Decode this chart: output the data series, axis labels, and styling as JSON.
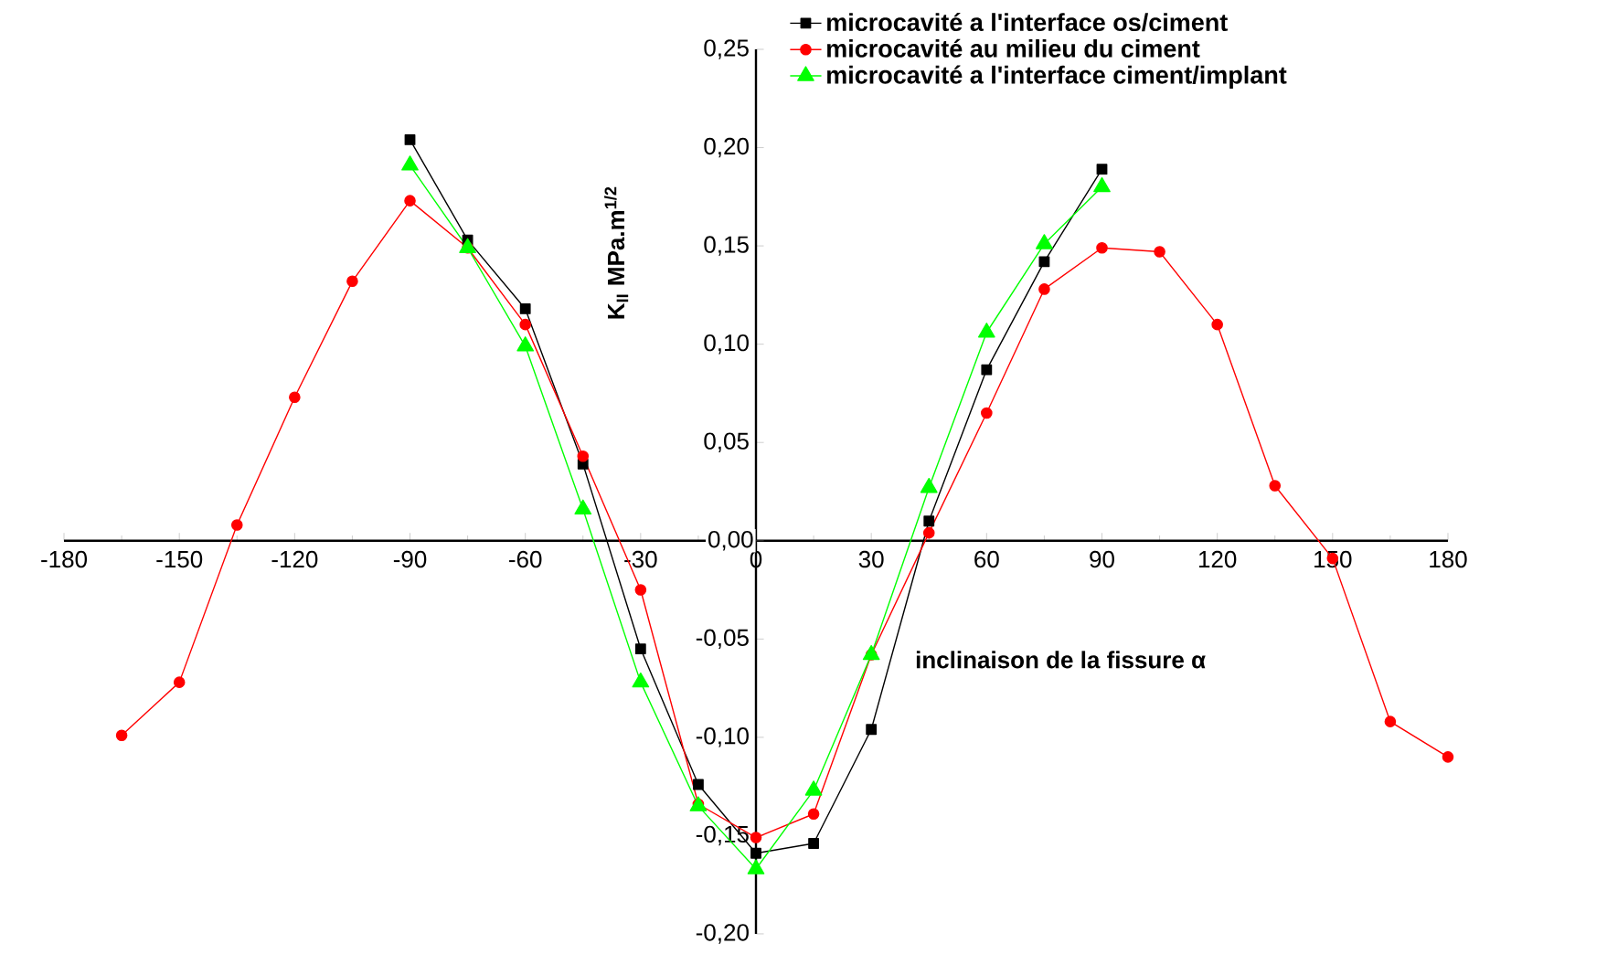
{
  "chart_data": {
    "type": "line",
    "xlabel": "inclinaison de la fissure α",
    "ylabel": "K$_{II}$ MPa.m$^{1/2}$",
    "x": [
      -165,
      -150,
      -135,
      -120,
      -105,
      -90,
      -75,
      -60,
      -45,
      -30,
      -15,
      0,
      15,
      30,
      45,
      60,
      75,
      90,
      105,
      120,
      135,
      150,
      165,
      180
    ],
    "series": [
      {
        "name": "microcavité a l'interface os/ciment",
        "color": "#000000",
        "marker": "square",
        "x": [
          -90,
          -75,
          -60,
          -45,
          -30,
          -15,
          0,
          15,
          30,
          45,
          60,
          75,
          90
        ],
        "values": [
          0.204,
          0.153,
          0.118,
          0.039,
          -0.055,
          -0.124,
          -0.159,
          -0.154,
          -0.096,
          0.01,
          0.087,
          0.142,
          0.189
        ]
      },
      {
        "name": "microcavité au milieu du ciment",
        "color": "#ff0000",
        "marker": "circle",
        "values": [
          -0.099,
          -0.072,
          0.008,
          0.073,
          0.132,
          0.173,
          0.149,
          0.11,
          0.043,
          -0.025,
          -0.134,
          -0.151,
          -0.139,
          -0.058,
          0.004,
          0.065,
          0.128,
          0.149,
          0.147,
          0.11,
          0.028,
          -0.009,
          -0.092,
          -0.11
        ]
      },
      {
        "name": "microcavité a l'interface ciment/implant",
        "color": "#00ff00",
        "marker": "triangle",
        "x": [
          -90,
          -75,
          -60,
          -45,
          -30,
          -15,
          0,
          15,
          30,
          45,
          60,
          75,
          90
        ],
        "values": [
          0.191,
          0.149,
          0.099,
          0.016,
          -0.072,
          -0.135,
          -0.167,
          -0.127,
          -0.058,
          0.027,
          0.106,
          0.151,
          0.18
        ]
      }
    ],
    "xlim": [
      -180,
      180
    ],
    "xticks": [
      -180,
      -150,
      -120,
      -90,
      -60,
      -30,
      0,
      30,
      60,
      90,
      120,
      150,
      180
    ],
    "ylim": [
      -0.2,
      0.25
    ],
    "yticks": [
      {
        "value": -0.2,
        "label": "-0,20"
      },
      {
        "value": -0.15,
        "label": "-0,15"
      },
      {
        "value": -0.1,
        "label": "-0,10"
      },
      {
        "value": -0.05,
        "label": "-0,05"
      },
      {
        "value": 0,
        "label": "0,00"
      },
      {
        "value": 0.05,
        "label": "0,05"
      },
      {
        "value": 0.1,
        "label": "0,10"
      },
      {
        "value": 0.15,
        "label": "0,15"
      },
      {
        "value": 0.2,
        "label": "0,20"
      },
      {
        "value": 0.25,
        "label": "0,25"
      }
    ],
    "legend": "top right",
    "grid": false,
    "line_style": "solid"
  }
}
